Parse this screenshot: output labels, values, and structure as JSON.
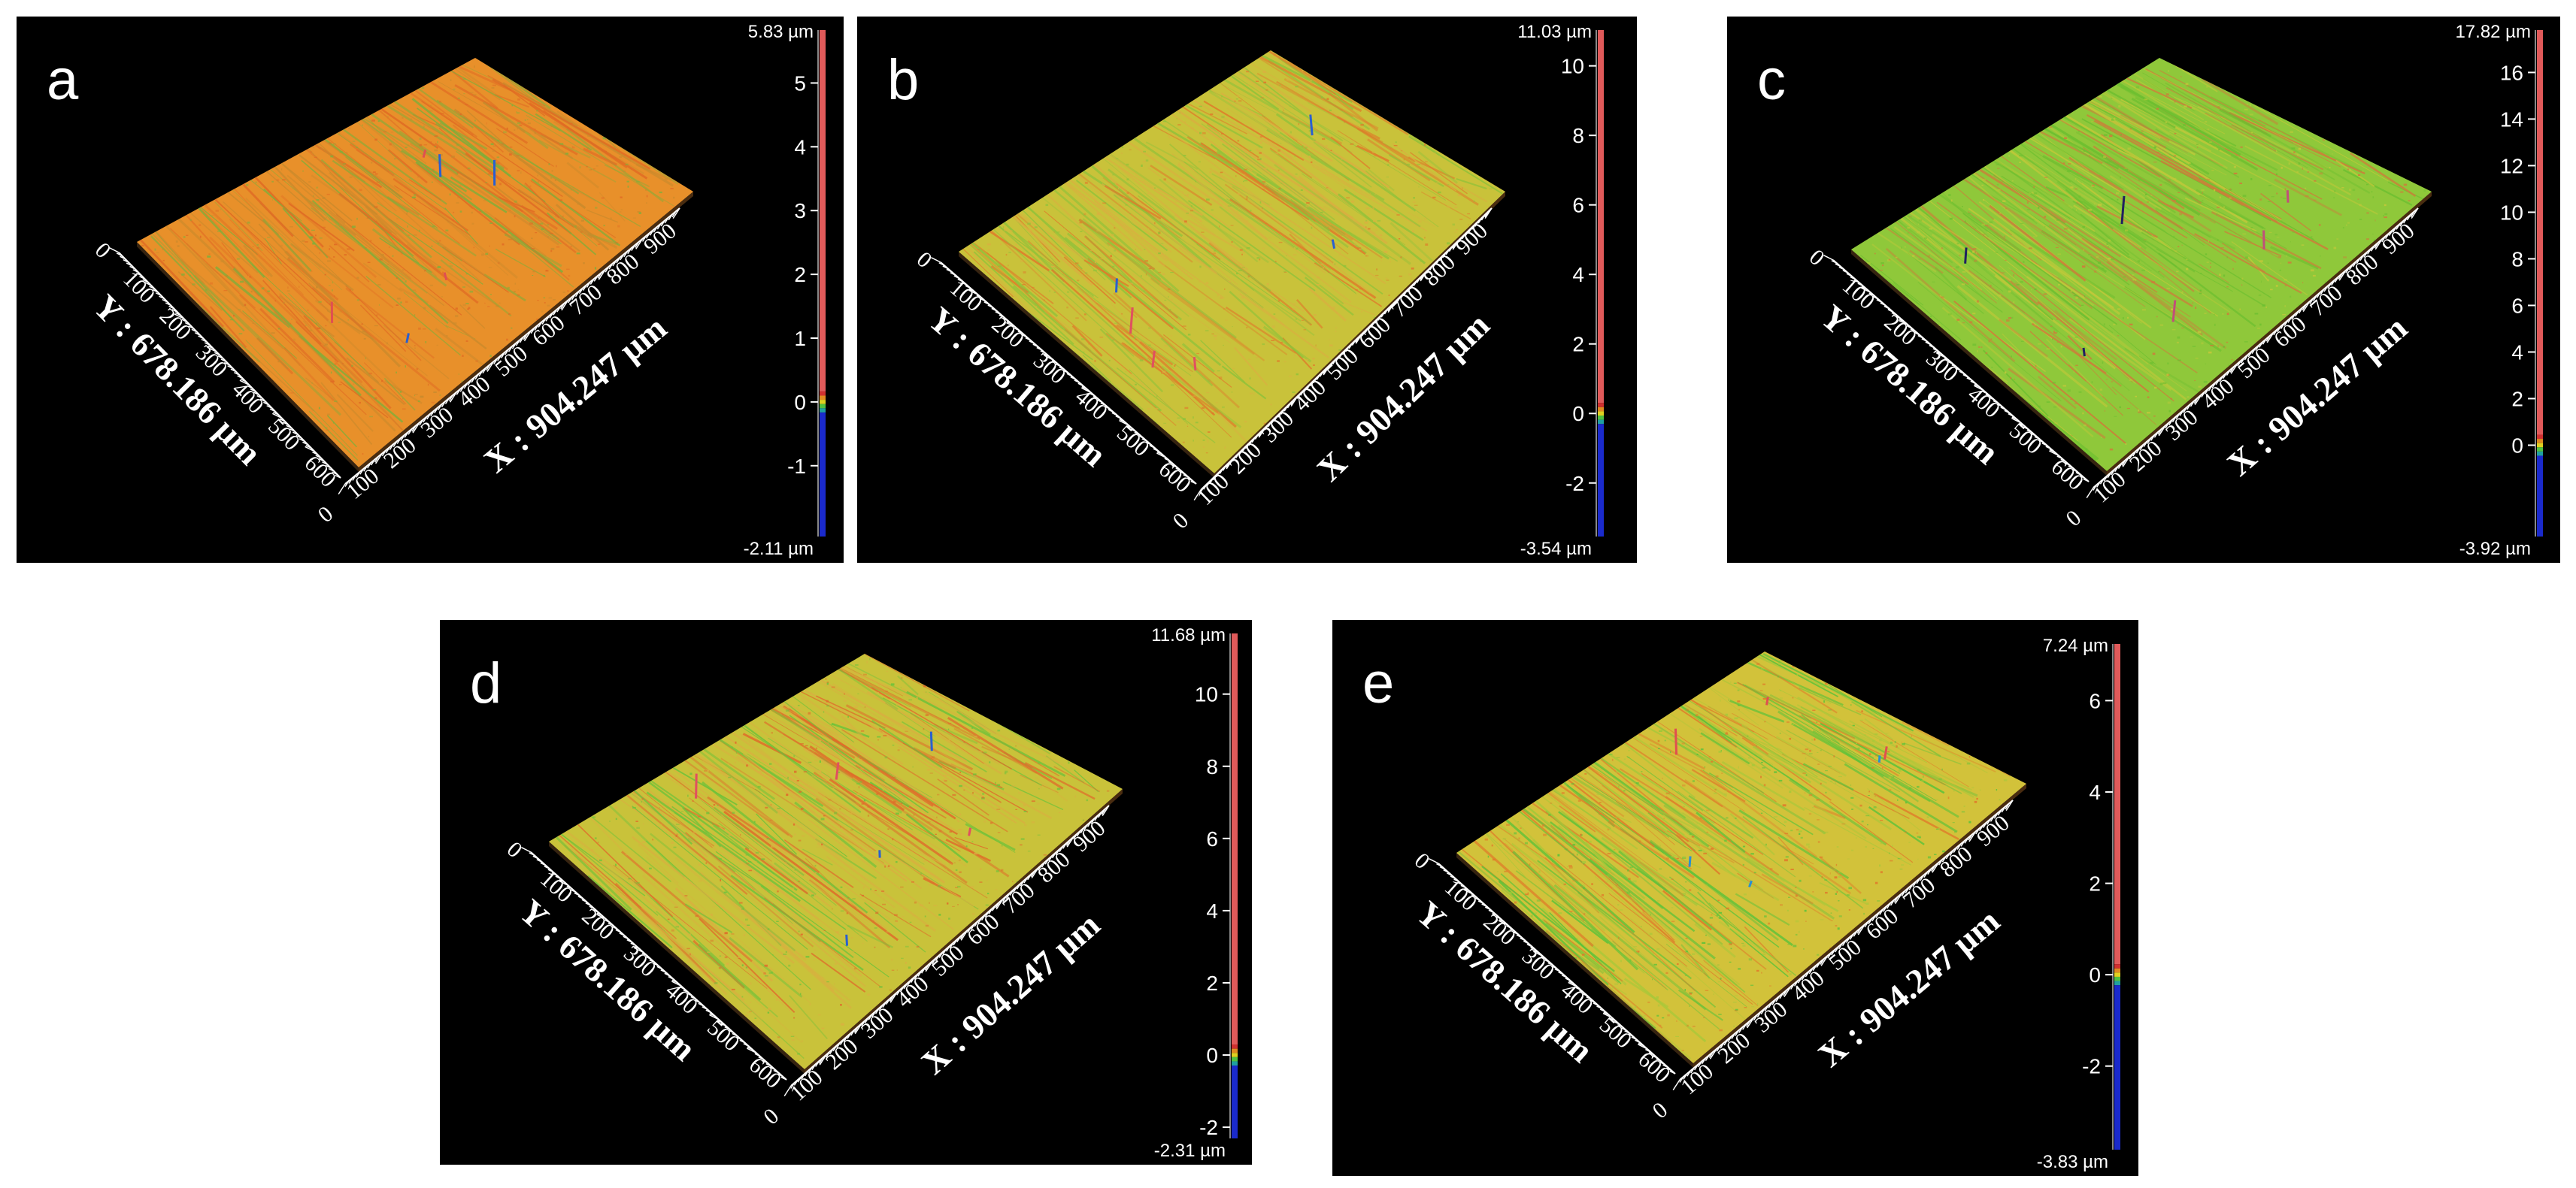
{
  "panels": [
    {
      "label": "a",
      "x_axis": {
        "title": "X : 904.247 µm",
        "ticks": [
          "0",
          "100",
          "200",
          "300",
          "400",
          "500",
          "600",
          "700",
          "800",
          "900"
        ]
      },
      "y_axis": {
        "title": "Y : 678.186 µm",
        "ticks": [
          "0",
          "100",
          "200",
          "300",
          "400",
          "500",
          "600"
        ]
      },
      "z_scale": {
        "max_label": "5.83 µm",
        "min_label": "-2.11 µm",
        "max": 5.83,
        "min": -2.11,
        "ticks": [
          "5",
          "4",
          "3",
          "2",
          "1",
          "0",
          "-1"
        ],
        "tick_values": [
          5,
          4,
          3,
          2,
          1,
          0,
          -1
        ]
      },
      "surface_colors": [
        "#e8902a",
        "#e06a24",
        "#c98a2c",
        "#7fae3a"
      ],
      "spike_colors": [
        "#e05050",
        "#2a5fd0"
      ]
    },
    {
      "label": "b",
      "x_axis": {
        "title": "X : 904.247 µm",
        "ticks": [
          "0",
          "100",
          "200",
          "300",
          "400",
          "500",
          "600",
          "700",
          "800",
          "900"
        ]
      },
      "y_axis": {
        "title": "Y : 678.186 µm",
        "ticks": [
          "0",
          "100",
          "200",
          "300",
          "400",
          "500",
          "600"
        ]
      },
      "z_scale": {
        "max_label": "11.03 µm",
        "min_label": "-3.54 µm",
        "max": 11.03,
        "min": -3.54,
        "ticks": [
          "10",
          "8",
          "6",
          "4",
          "2",
          "0",
          "-2"
        ],
        "tick_values": [
          10,
          8,
          6,
          4,
          2,
          0,
          -2
        ]
      },
      "surface_colors": [
        "#c9c23a",
        "#e07a2a",
        "#8fc23a",
        "#d9b040"
      ],
      "spike_colors": [
        "#e05060",
        "#2a5fd0"
      ]
    },
    {
      "label": "c",
      "x_axis": {
        "title": "X : 904.247 µm",
        "ticks": [
          "0",
          "100",
          "200",
          "300",
          "400",
          "500",
          "600",
          "700",
          "800",
          "900"
        ]
      },
      "y_axis": {
        "title": "Y : 678.186 µm",
        "ticks": [
          "0",
          "100",
          "200",
          "300",
          "400",
          "500",
          "600"
        ]
      },
      "z_scale": {
        "max_label": "17.82 µm",
        "min_label": "-3.92 µm",
        "max": 17.82,
        "min": -3.92,
        "ticks": [
          "16",
          "14",
          "12",
          "10",
          "8",
          "6",
          "4",
          "2",
          "0"
        ],
        "tick_values": [
          16,
          14,
          12,
          10,
          8,
          6,
          4,
          2,
          0
        ]
      },
      "surface_colors": [
        "#8fc83a",
        "#6cbf30",
        "#c2c83a",
        "#d07a3a"
      ],
      "spike_colors": [
        "#c0507a",
        "#202060"
      ]
    },
    {
      "label": "d",
      "x_axis": {
        "title": "X : 904.247 µm",
        "ticks": [
          "0",
          "100",
          "200",
          "300",
          "400",
          "500",
          "600",
          "700",
          "800",
          "900"
        ]
      },
      "y_axis": {
        "title": "Y : 678.186 µm",
        "ticks": [
          "0",
          "100",
          "200",
          "300",
          "400",
          "500",
          "600"
        ]
      },
      "z_scale": {
        "max_label": "11.68 µm",
        "min_label": "-2.31 µm",
        "max": 11.68,
        "min": -2.31,
        "ticks": [
          "10",
          "8",
          "6",
          "4",
          "2",
          "0",
          "-2"
        ],
        "tick_values": [
          10,
          8,
          6,
          4,
          2,
          0,
          -2
        ]
      },
      "surface_colors": [
        "#c9c23a",
        "#e06a2a",
        "#6cc23a",
        "#d9b040"
      ],
      "spike_colors": [
        "#e05060",
        "#2a5fd0"
      ]
    },
    {
      "label": "e",
      "x_axis": {
        "title": "X : 904.247 µm",
        "ticks": [
          "0",
          "100",
          "200",
          "300",
          "400",
          "500",
          "600",
          "700",
          "800",
          "900"
        ]
      },
      "y_axis": {
        "title": "Y : 678.186 µm",
        "ticks": [
          "0",
          "100",
          "200",
          "300",
          "400",
          "500",
          "600"
        ]
      },
      "z_scale": {
        "max_label": "7.24 µm",
        "min_label": "-3.83 µm",
        "max": 7.24,
        "min": -3.83,
        "ticks": [
          "6",
          "4",
          "2",
          "0",
          "-2"
        ],
        "tick_values": [
          6,
          4,
          2,
          0,
          -2
        ]
      },
      "surface_colors": [
        "#d2c23a",
        "#5cc23a",
        "#e07a2a",
        "#a8c83a"
      ],
      "spike_colors": [
        "#e05050",
        "#2a8fd0"
      ]
    }
  ]
}
